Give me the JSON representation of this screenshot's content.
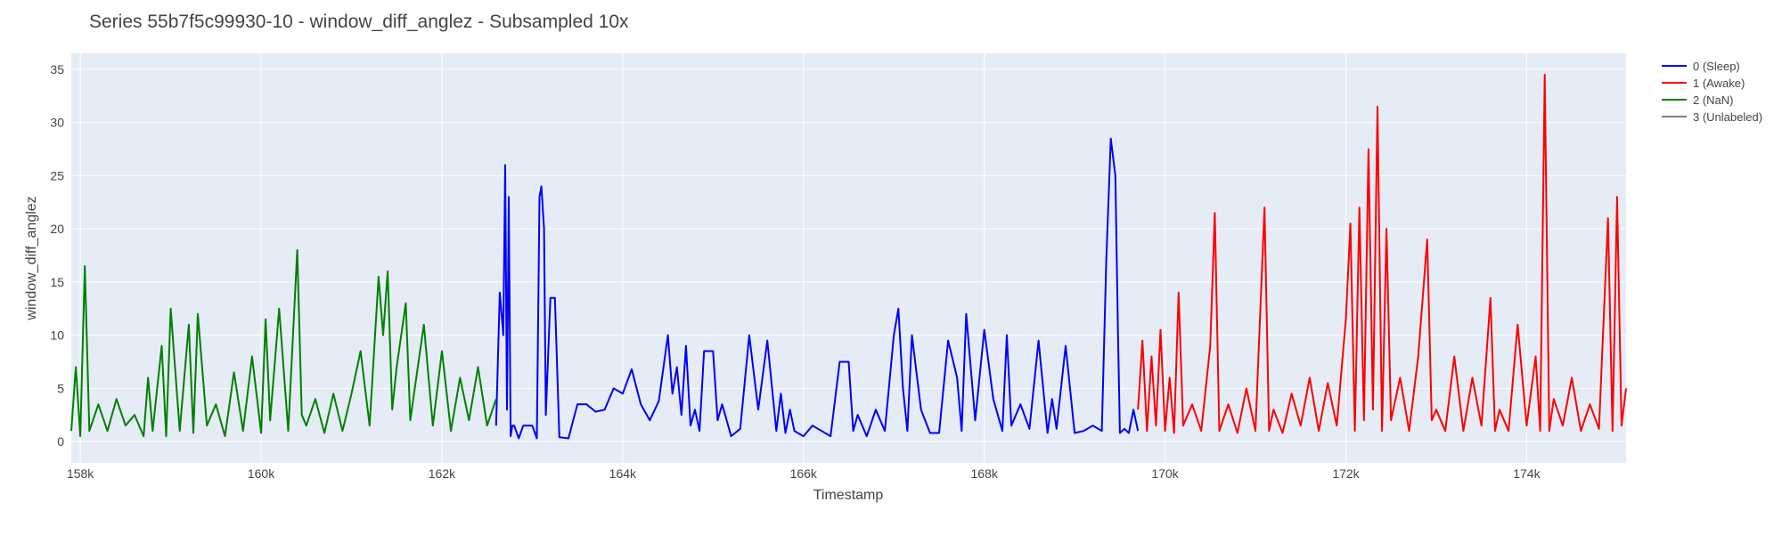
{
  "chart_data": {
    "type": "line",
    "title": "Series 55b7f5c99930-10 - window_diff_anglez - Subsampled 10x",
    "xlabel": "Timestamp",
    "ylabel": "window_diff_anglez",
    "xlim": [
      157900,
      175100
    ],
    "ylim": [
      -2,
      36.5
    ],
    "grid": true,
    "legend_position": "top-right, outside plot",
    "x_ticks": [
      158000,
      160000,
      162000,
      164000,
      166000,
      168000,
      170000,
      172000,
      174000
    ],
    "x_tick_labels": [
      "158k",
      "160k",
      "162k",
      "164k",
      "166k",
      "168k",
      "170k",
      "172k",
      "174k"
    ],
    "y_ticks": [
      0,
      5,
      10,
      15,
      20,
      25,
      30,
      35
    ],
    "y_tick_labels": [
      "0",
      "5",
      "10",
      "15",
      "20",
      "25",
      "30",
      "35"
    ],
    "colors": {
      "background": "#e5ecf6",
      "sleep": "#0000ff",
      "awake": "#ff0000",
      "nan": "#008000",
      "unlabeled": "#808080"
    },
    "series": [
      {
        "name": "0 (Sleep)",
        "color": "#0000ff",
        "x": [
          162600,
          162640,
          162680,
          162700,
          162720,
          162740,
          162760,
          162780,
          162800,
          162850,
          162900,
          163000,
          163050,
          163080,
          163100,
          163130,
          163150,
          163200,
          163250,
          163300,
          163400,
          163500,
          163600,
          163700,
          163800,
          163900,
          164000,
          164100,
          164200,
          164300,
          164400,
          164500,
          164550,
          164600,
          164650,
          164700,
          164750,
          164800,
          164850,
          164900,
          165000,
          165050,
          165100,
          165200,
          165300,
          165400,
          165500,
          165600,
          165700,
          165750,
          165800,
          165850,
          165900,
          166000,
          166100,
          166200,
          166300,
          166400,
          166500,
          166550,
          166600,
          166700,
          166800,
          166900,
          167000,
          167050,
          167100,
          167150,
          167200,
          167300,
          167400,
          167500,
          167600,
          167700,
          167750,
          167800,
          167900,
          168000,
          168100,
          168200,
          168250,
          168300,
          168400,
          168500,
          168600,
          168700,
          168750,
          168800,
          168900,
          169000,
          169100,
          169200,
          169300,
          169350,
          169400,
          169450,
          169480,
          169500,
          169550,
          169600,
          169650,
          169700
        ],
        "values": [
          1.5,
          14.0,
          10.0,
          26.0,
          3.0,
          23.0,
          0.5,
          1.5,
          1.5,
          0.3,
          1.5,
          1.5,
          0.3,
          23.0,
          24.0,
          20.0,
          2.5,
          13.5,
          13.5,
          0.4,
          0.3,
          3.5,
          3.5,
          2.8,
          3.0,
          5.0,
          4.5,
          6.8,
          3.5,
          2.0,
          3.8,
          10.0,
          4.5,
          7.0,
          2.5,
          9.0,
          1.5,
          3.0,
          1.0,
          8.5,
          8.5,
          2.0,
          3.5,
          0.5,
          1.2,
          10.0,
          3.0,
          9.5,
          1.0,
          4.5,
          0.8,
          3.0,
          1.0,
          0.5,
          1.5,
          1.0,
          0.5,
          7.5,
          7.5,
          1.0,
          2.5,
          0.5,
          3.0,
          1.0,
          10.0,
          12.5,
          5.0,
          1.0,
          10.0,
          3.0,
          0.8,
          0.8,
          9.5,
          6.0,
          1.0,
          12.0,
          2.0,
          10.5,
          4.0,
          1.0,
          10.0,
          1.5,
          3.5,
          1.2,
          9.5,
          0.8,
          4.0,
          1.2,
          9.0,
          0.8,
          1.0,
          1.5,
          1.0,
          17.0,
          28.5,
          25.0,
          10.0,
          0.8,
          1.2,
          0.8,
          3.0,
          1.0
        ]
      },
      {
        "name": "1 (Awake)",
        "color": "#ff0000",
        "x": [
          169700,
          169750,
          169800,
          169850,
          169900,
          169950,
          170000,
          170050,
          170100,
          170150,
          170200,
          170300,
          170400,
          170500,
          170550,
          170600,
          170700,
          170800,
          170900,
          171000,
          171100,
          171150,
          171200,
          171300,
          171400,
          171500,
          171600,
          171700,
          171800,
          171900,
          172000,
          172050,
          172100,
          172150,
          172200,
          172250,
          172300,
          172350,
          172400,
          172450,
          172500,
          172600,
          172700,
          172800,
          172900,
          172950,
          173000,
          173100,
          173200,
          173300,
          173400,
          173500,
          173600,
          173650,
          173700,
          173800,
          173900,
          174000,
          174100,
          174150,
          174200,
          174250,
          174300,
          174400,
          174500,
          174600,
          174700,
          174800,
          174900,
          174950,
          175000,
          175050,
          175100
        ],
        "values": [
          3.0,
          9.5,
          1.0,
          8.0,
          1.5,
          10.5,
          1.0,
          6.0,
          0.8,
          14.0,
          1.5,
          3.5,
          1.0,
          9.0,
          21.5,
          1.0,
          3.5,
          0.8,
          5.0,
          1.0,
          22.0,
          1.0,
          3.0,
          0.8,
          4.5,
          1.5,
          6.0,
          1.0,
          5.5,
          1.5,
          11.5,
          20.5,
          1.0,
          22.0,
          2.0,
          27.5,
          3.0,
          31.5,
          1.0,
          20.0,
          2.0,
          6.0,
          1.0,
          8.0,
          19.0,
          2.0,
          3.0,
          1.0,
          8.0,
          1.0,
          6.0,
          1.5,
          13.5,
          1.0,
          3.0,
          1.0,
          11.0,
          1.5,
          8.0,
          1.0,
          34.5,
          1.0,
          4.0,
          1.5,
          6.0,
          1.0,
          3.5,
          1.2,
          21.0,
          1.0,
          23.0,
          1.5,
          5.0
        ]
      },
      {
        "name": "2 (NaN)",
        "color": "#008000",
        "x": [
          157900,
          157950,
          158000,
          158050,
          158100,
          158200,
          158300,
          158400,
          158500,
          158600,
          158700,
          158750,
          158800,
          158900,
          158950,
          159000,
          159100,
          159200,
          159250,
          159300,
          159400,
          159500,
          159600,
          159700,
          159800,
          159900,
          160000,
          160050,
          160100,
          160200,
          160300,
          160400,
          160450,
          160500,
          160600,
          160700,
          160800,
          160900,
          161000,
          161100,
          161200,
          161300,
          161350,
          161400,
          161450,
          161500,
          161600,
          161650,
          161700,
          161800,
          161900,
          162000,
          162100,
          162200,
          162300,
          162400,
          162500,
          162600
        ],
        "values": [
          1.0,
          7.0,
          0.5,
          16.5,
          1.0,
          3.5,
          1.0,
          4.0,
          1.5,
          2.5,
          0.5,
          6.0,
          1.0,
          9.0,
          0.5,
          12.5,
          1.0,
          11.0,
          0.8,
          12.0,
          1.5,
          3.5,
          0.5,
          6.5,
          1.0,
          8.0,
          0.8,
          11.5,
          2.0,
          12.5,
          1.0,
          18.0,
          2.5,
          1.5,
          4.0,
          0.8,
          4.5,
          1.0,
          4.5,
          8.5,
          1.5,
          15.5,
          10.0,
          16.0,
          3.0,
          7.0,
          13.0,
          2.0,
          5.0,
          11.0,
          1.5,
          8.5,
          1.0,
          6.0,
          2.0,
          7.0,
          1.5,
          4.0
        ]
      },
      {
        "name": "3 (Unlabeled)",
        "color": "#808080",
        "x": [],
        "values": []
      }
    ]
  }
}
